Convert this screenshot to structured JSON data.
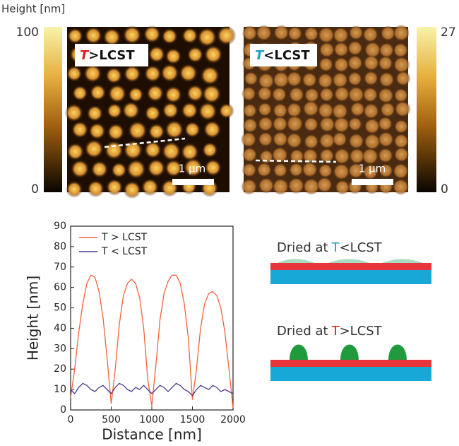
{
  "afm": {
    "colorbar_title": "Height [nm]",
    "left": {
      "colorbar_max": "100",
      "colorbar_min": "0",
      "symbol": "T",
      "condition": ">LCST",
      "scale": "1 μm"
    },
    "right": {
      "colorbar_max": "27",
      "colorbar_min": "0",
      "symbol": "T",
      "condition": "<LCST",
      "scale": "1 μm"
    }
  },
  "chart_data": {
    "type": "line",
    "xlabel": "Distance [nm]",
    "ylabel": "Height [nm]",
    "x": [
      0,
      50,
      100,
      150,
      200,
      250,
      300,
      350,
      400,
      450,
      500,
      550,
      600,
      650,
      700,
      750,
      800,
      850,
      900,
      950,
      1000,
      1050,
      1100,
      1150,
      1200,
      1250,
      1300,
      1350,
      1400,
      1450,
      1500,
      1550,
      1600,
      1650,
      1700,
      1750,
      1800,
      1850,
      1900,
      1950,
      2000
    ],
    "series": [
      {
        "name": "T > LCST",
        "color": "#f0643c",
        "values": [
          6,
          20,
          38,
          52,
          62,
          66,
          65,
          58,
          45,
          25,
          3,
          20,
          42,
          56,
          62,
          64,
          62,
          55,
          40,
          15,
          2,
          22,
          44,
          57,
          63,
          66,
          66,
          62,
          52,
          35,
          5,
          20,
          40,
          52,
          57,
          58,
          56,
          50,
          38,
          20,
          1
        ]
      },
      {
        "name": "T < LCST",
        "color": "#4b3a8c",
        "values": [
          10,
          8,
          11,
          13,
          12,
          10,
          9,
          11,
          12,
          10,
          8,
          11,
          13,
          12,
          10,
          9,
          11,
          10,
          12,
          10,
          8,
          10,
          12,
          11,
          9,
          11,
          13,
          12,
          10,
          9,
          7,
          10,
          12,
          11,
          10,
          12,
          11,
          9,
          10,
          9,
          8
        ]
      }
    ],
    "xlim": [
      0,
      2000
    ],
    "xticks": [
      0,
      500,
      1000,
      1500,
      2000
    ],
    "ylim": [
      0,
      90
    ],
    "yticks": [
      0,
      10,
      20,
      30,
      40,
      50,
      60,
      70,
      80,
      90
    ],
    "legend": "upper left"
  },
  "schematic": {
    "top": {
      "prefix": "Dried at",
      "symbol": "T",
      "condition": "<LCST"
    },
    "bottom": {
      "prefix": "Dried at",
      "symbol": "T",
      "condition": ">LCST"
    }
  }
}
